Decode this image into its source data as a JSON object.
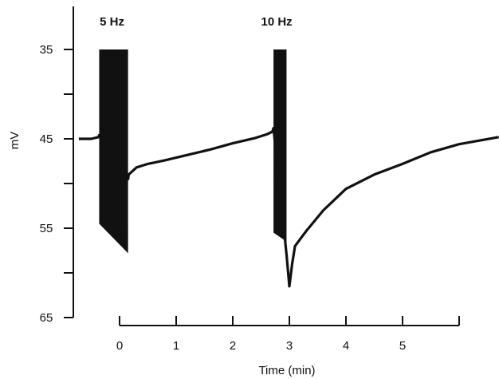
{
  "chart_data": {
    "type": "line",
    "title": "",
    "xlabel": "Time (min)",
    "ylabel": "mV",
    "xlim": [
      -0.75,
      6.7
    ],
    "ylim": [
      65,
      30
    ],
    "x_ticks": [
      0,
      1,
      2,
      3,
      4,
      5
    ],
    "x_tick_labels": [
      "0",
      "1",
      "2",
      "3",
      "4",
      "5"
    ],
    "y_ticks": [
      35,
      40,
      45,
      50,
      55,
      60,
      65
    ],
    "y_tick_labels": [
      "35",
      "",
      "45",
      "",
      "55",
      "",
      "65"
    ],
    "annotations": [
      {
        "text": "5 Hz",
        "x": -0.35,
        "y": 32.5
      },
      {
        "text": "10 Hz",
        "x": 2.5,
        "y": 32.5
      }
    ],
    "series": [
      {
        "x": [
          -0.72,
          -0.5,
          -0.37,
          -0.36,
          0.15,
          0.16,
          0.3,
          0.5,
          0.8,
          1.2,
          1.6,
          2.0,
          2.4,
          2.6,
          2.7,
          2.72,
          2.95,
          3.0,
          3.05,
          3.1,
          3.3,
          3.6,
          4.0,
          4.5,
          5.0,
          5.5,
          6.0,
          6.7
        ],
        "y": [
          45.0,
          45.0,
          44.8,
          44.6,
          49.5,
          49.0,
          48.2,
          47.8,
          47.4,
          46.8,
          46.2,
          45.5,
          44.9,
          44.5,
          44.2,
          43.8,
          58.0,
          61.5,
          59.0,
          57.0,
          55.3,
          53.0,
          50.6,
          49.0,
          47.8,
          46.5,
          45.6,
          44.8
        ]
      }
    ],
    "stimulus_bursts": [
      {
        "label": "5 Hz",
        "x_start": -0.36,
        "x_end": 0.15,
        "top": 35,
        "bottom_start": 54.5,
        "bottom_end": 57.8
      },
      {
        "label": "10 Hz",
        "x_start": 2.72,
        "x_end": 2.95,
        "top": 35,
        "bottom_start": 55.5,
        "bottom_end": 56.5
      }
    ]
  }
}
